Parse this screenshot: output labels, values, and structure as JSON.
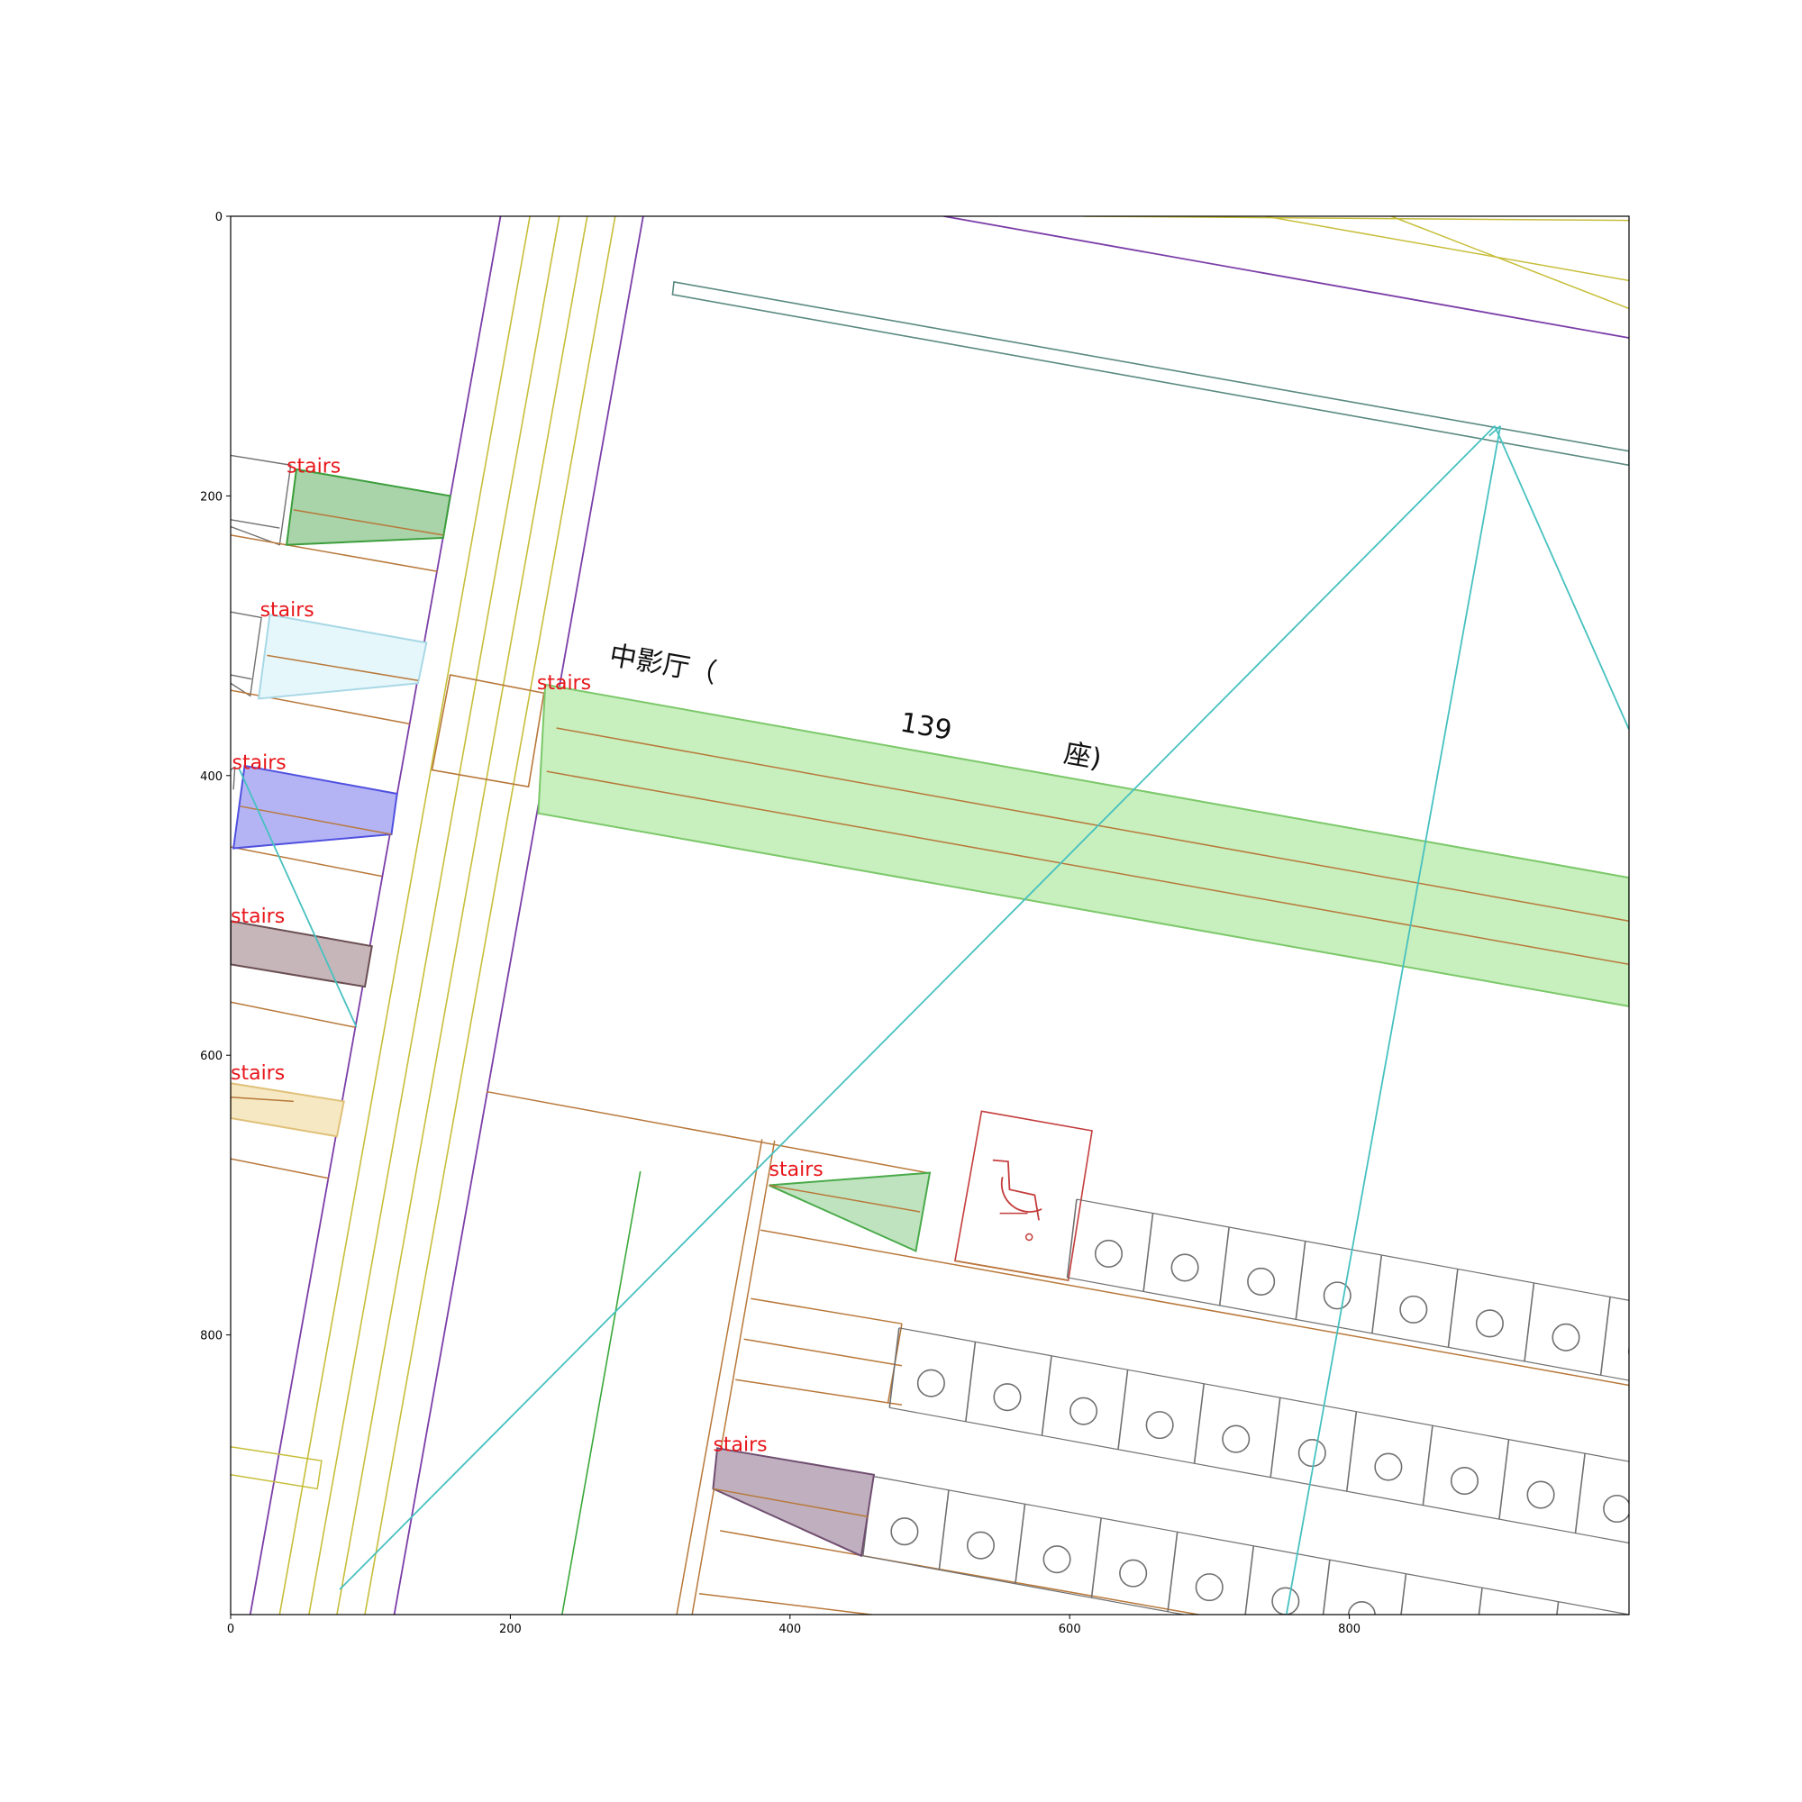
{
  "figure": {
    "x_range": [
      0,
      1000
    ],
    "y_range": [
      0,
      1000
    ],
    "y_inverted": true,
    "x_ticks": [
      0,
      200,
      400,
      600,
      800
    ],
    "y_ticks": [
      0,
      200,
      400,
      600,
      800
    ],
    "tick_labels": {
      "x": [
        "0",
        "200",
        "400",
        "600",
        "800"
      ],
      "y": [
        "0",
        "200",
        "400",
        "600",
        "800"
      ]
    }
  },
  "labels": {
    "stairs": [
      {
        "text": "stairs",
        "x": 40,
        "y": 178
      },
      {
        "text": "stairs",
        "x": 21,
        "y": 281
      },
      {
        "text": "stairs",
        "x": 219,
        "y": 333
      },
      {
        "text": "stairs",
        "x": 1,
        "y": 390
      },
      {
        "text": "stairs",
        "x": 0,
        "y": 500
      },
      {
        "text": "stairs",
        "x": 0,
        "y": 612
      },
      {
        "text": "stairs",
        "x": 385,
        "y": 681
      },
      {
        "text": "stairs",
        "x": 345,
        "y": 878
      }
    ],
    "hall": [
      {
        "text": "中影厅（",
        "x": 270,
        "y": 320
      },
      {
        "text": "139",
        "x": 478,
        "y": 368
      },
      {
        "text": "座)",
        "x": 595,
        "y": 390
      }
    ]
  },
  "colors": {
    "purple": "#7b3ea8",
    "olive": "#c7be3a",
    "brown": "#b8783a",
    "teal": "#47c1c0",
    "slate": "#5a8a80",
    "green_line": "#3aa83a",
    "red": "#c43c3c",
    "gray": "#707070"
  },
  "stairs_regions": [
    {
      "pts": [
        [
          47,
          181
        ],
        [
          157,
          200
        ],
        [
          152,
          230
        ],
        [
          40,
          235
        ]
      ],
      "fill": "#a9d3a9",
      "stroke": "#3b9e3b",
      "inner": [
        [
          45,
          210
        ],
        [
          152,
          228
        ]
      ]
    },
    {
      "pts": [
        [
          28,
          285
        ],
        [
          140,
          305
        ],
        [
          134,
          334
        ],
        [
          20,
          345
        ]
      ],
      "fill": "#e6f7fb",
      "stroke": "#a8d8e6",
      "inner": [
        [
          26,
          314
        ],
        [
          134,
          332
        ]
      ]
    },
    {
      "pts": [
        [
          225,
          335
        ],
        [
          1000,
          473
        ],
        [
          1000,
          565
        ],
        [
          220,
          427
        ]
      ],
      "fill": "#c8efbe",
      "stroke": "#7cc86a",
      "inner": [
        [
          233,
          366
        ],
        [
          1000,
          504
        ]
      ],
      "inner2": [
        [
          226,
          397
        ],
        [
          1000,
          535
        ]
      ]
    },
    {
      "pts": [
        [
          10,
          393
        ],
        [
          119,
          413
        ],
        [
          115,
          442
        ],
        [
          2,
          452
        ]
      ],
      "fill": "#b4b4f5",
      "stroke": "#5050e0",
      "inner": [
        [
          7,
          422
        ],
        [
          115,
          442
        ]
      ]
    },
    {
      "pts": [
        [
          0,
          504
        ],
        [
          101,
          522
        ],
        [
          96,
          551
        ],
        [
          0,
          535
        ]
      ],
      "fill": "#c6b6ba",
      "stroke": "#6a4e52"
    },
    {
      "pts": [
        [
          0,
          620
        ],
        [
          81,
          633
        ],
        [
          76,
          658
        ],
        [
          0,
          645
        ]
      ],
      "fill": "#f5e8c2",
      "stroke": "#e0c078",
      "inner": [
        [
          0,
          630
        ],
        [
          45,
          633
        ]
      ]
    },
    {
      "pts": [
        [
          385,
          693
        ],
        [
          500,
          684
        ],
        [
          490,
          740
        ]
      ],
      "fill": "#bfe3bf",
      "stroke": "#4aaa4a",
      "inner": [
        [
          385,
          693
        ],
        [
          493,
          712
        ]
      ]
    },
    {
      "pts": [
        [
          348,
          881
        ],
        [
          460,
          900
        ],
        [
          451,
          958
        ],
        [
          345,
          910
        ]
      ],
      "fill": "#c0b0bf",
      "stroke": "#704e70",
      "inner": [
        [
          345,
          910
        ],
        [
          456,
          930
        ]
      ]
    }
  ]
}
